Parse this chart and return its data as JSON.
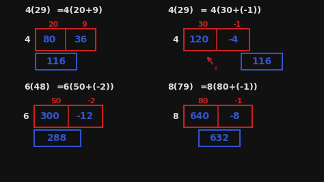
{
  "bg_color": "#111111",
  "red": "#cc2222",
  "blue": "#3355cc",
  "white": "#e0e0e0",
  "sections": [
    {
      "top_eq_left": "4(29)",
      "top_eq_right": "=4(20+9)",
      "col_labels": [
        "20",
        "9"
      ],
      "col_label_colors": [
        "red",
        "red"
      ],
      "row_label": "4",
      "cells": [
        "80",
        "36"
      ],
      "result": "116",
      "has_arrow": false
    },
    {
      "top_eq_left": "4(29)",
      "top_eq_right": "= 4(30+(-1))",
      "col_labels": [
        "30",
        "-1"
      ],
      "col_label_colors": [
        "red",
        "red"
      ],
      "row_label": "4",
      "cells": [
        "120",
        "-4"
      ],
      "result": "116",
      "has_arrow": true
    },
    {
      "top_eq_left": "6(48)",
      "top_eq_right": "=6(50+(-2))",
      "col_labels": [
        "50",
        "-2"
      ],
      "col_label_colors": [
        "red",
        "red"
      ],
      "row_label": "6",
      "cells": [
        "300",
        "-12"
      ],
      "result": "288",
      "has_arrow": false
    },
    {
      "top_eq_left": "8(79)",
      "top_eq_right": "=8(80+(-1))",
      "col_labels": [
        "80",
        "-1"
      ],
      "col_label_colors": [
        "red",
        "red"
      ],
      "row_label": "8",
      "cells": [
        "640",
        "-8"
      ],
      "result": "632",
      "has_arrow": false
    }
  ],
  "layout": {
    "fig_w": 4.74,
    "fig_h": 2.66,
    "dpi": 100
  }
}
